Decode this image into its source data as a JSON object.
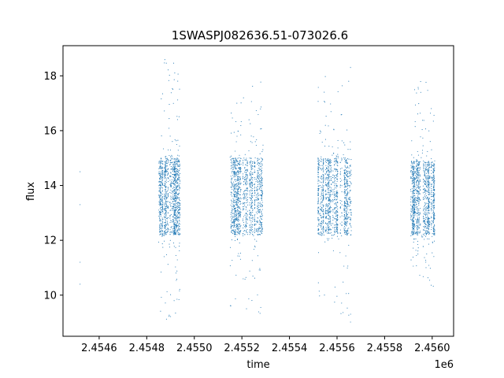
{
  "chart_data": {
    "type": "scatter",
    "title": "1SWASPJ082636.51-073026.6",
    "xlabel": "time",
    "ylabel": "flux",
    "x_offset_label": "1e6",
    "xlim": [
      2454448,
      2456090
    ],
    "ylim": [
      8.5,
      19.1
    ],
    "x_ticks": [
      2454600,
      2454800,
      2455000,
      2455200,
      2455400,
      2455600,
      2455800,
      2456000
    ],
    "x_tick_labels": [
      "2.4546",
      "2.4548",
      "2.4550",
      "2.4552",
      "2.4554",
      "2.4556",
      "2.4558",
      "2.4560"
    ],
    "y_ticks": [
      10,
      12,
      14,
      16,
      18
    ],
    "y_tick_labels": [
      "10",
      "12",
      "14",
      "16",
      "18"
    ],
    "grid": false,
    "legend": "none",
    "point_color": "#1f77b4",
    "series": [
      {
        "points_description": "dense photometric observations grouped in seasonal clusters",
        "isolated_points": [
          [
            2454520,
            14.5
          ],
          [
            2454520,
            13.3
          ],
          [
            2454520,
            11.2
          ],
          [
            2454520,
            10.4
          ]
        ],
        "clusters": [
          {
            "x_range": [
              2454850,
              2454940
            ],
            "core_y": [
              12.2,
              15.0
            ],
            "outlier_y": [
              9.1,
              18.7
            ]
          },
          {
            "x_range": [
              2455150,
              2455290
            ],
            "core_y": [
              12.2,
              15.0
            ],
            "outlier_y": [
              9.0,
              18.2
            ]
          },
          {
            "x_range": [
              2455520,
              2455660
            ],
            "core_y": [
              12.2,
              15.0
            ],
            "outlier_y": [
              9.0,
              18.4
            ]
          },
          {
            "x_range": [
              2455910,
              2456010
            ],
            "core_y": [
              12.2,
              14.9
            ],
            "outlier_y": [
              10.3,
              17.8
            ]
          }
        ]
      }
    ]
  }
}
